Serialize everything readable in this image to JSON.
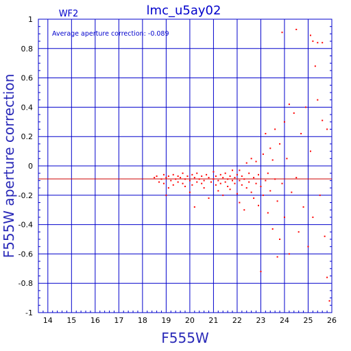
{
  "chart_data": {
    "type": "scatter",
    "title": "lmc_u5ay02",
    "chip_label": "WF2",
    "annotation": "Average aperture correction: -0.089",
    "xlabel": "F555W",
    "ylabel": "F555W aperture correction",
    "xlim": [
      13.6,
      26
    ],
    "ylim": [
      -1,
      1
    ],
    "xticks": [
      14,
      15,
      16,
      17,
      18,
      19,
      20,
      21,
      22,
      23,
      24,
      25,
      26
    ],
    "yticks": [
      -1,
      -0.8,
      -0.6,
      -0.4,
      -0.2,
      0,
      0.2,
      0.4,
      0.6,
      0.8,
      1
    ],
    "ytick_labels": [
      "-1",
      "-0.8",
      "-0.6",
      "-0.4",
      "-0.2",
      "0",
      "0.2",
      "0.4",
      "0.6",
      "0.8",
      "1"
    ],
    "grid": true,
    "reference_line": {
      "y": -0.089,
      "color": "#cc0000"
    },
    "point_color": "#ff0000",
    "axis_color": "#0000cc",
    "series": [
      {
        "values": [
          [
            18.5,
            -0.08
          ],
          [
            18.6,
            -0.07
          ],
          [
            18.7,
            -0.11
          ],
          [
            18.8,
            -0.09
          ],
          [
            18.9,
            -0.06
          ],
          [
            18.9,
            -0.12
          ],
          [
            19.0,
            -0.08
          ],
          [
            19.0,
            -0.2
          ],
          [
            19.1,
            -0.15
          ],
          [
            19.1,
            -0.07
          ],
          [
            19.2,
            -0.1
          ],
          [
            19.3,
            -0.06
          ],
          [
            19.3,
            -0.13
          ],
          [
            19.4,
            -0.09
          ],
          [
            19.5,
            -0.11
          ],
          [
            19.5,
            -0.07
          ],
          [
            19.6,
            -0.08
          ],
          [
            19.7,
            -0.12
          ],
          [
            19.7,
            -0.05
          ],
          [
            19.8,
            -0.14
          ],
          [
            19.8,
            -0.09
          ],
          [
            19.9,
            -0.07
          ],
          [
            20.0,
            -0.1
          ],
          [
            20.0,
            -0.18
          ],
          [
            20.1,
            -0.06
          ],
          [
            20.1,
            -0.13
          ],
          [
            20.2,
            -0.08
          ],
          [
            20.2,
            -0.28
          ],
          [
            20.3,
            -0.11
          ],
          [
            20.3,
            -0.05
          ],
          [
            20.4,
            -0.09
          ],
          [
            20.5,
            -0.12
          ],
          [
            20.5,
            -0.07
          ],
          [
            20.6,
            -0.1
          ],
          [
            20.6,
            -0.15
          ],
          [
            20.7,
            -0.06
          ],
          [
            20.8,
            -0.08
          ],
          [
            20.8,
            -0.22
          ],
          [
            20.9,
            -0.11
          ],
          [
            21.0,
            -0.09
          ],
          [
            21.0,
            -0.04
          ],
          [
            21.1,
            -0.13
          ],
          [
            21.1,
            -0.07
          ],
          [
            21.2,
            -0.1
          ],
          [
            21.2,
            -0.17
          ],
          [
            21.3,
            -0.06
          ],
          [
            21.3,
            -0.12
          ],
          [
            21.4,
            -0.08
          ],
          [
            21.4,
            -0.2
          ],
          [
            21.5,
            -0.11
          ],
          [
            21.5,
            -0.05
          ],
          [
            21.6,
            -0.09
          ],
          [
            21.6,
            -0.14
          ],
          [
            21.7,
            -0.07
          ],
          [
            21.7,
            -0.16
          ],
          [
            21.8,
            -0.1
          ],
          [
            21.8,
            -0.03
          ],
          [
            21.9,
            -0.12
          ],
          [
            21.9,
            -0.08
          ],
          [
            22.0,
            -0.06
          ],
          [
            22.0,
            -0.19
          ],
          [
            22.1,
            -0.1
          ],
          [
            22.1,
            -0.25
          ],
          [
            22.1,
            -0.03
          ],
          [
            22.2,
            -0.13
          ],
          [
            22.2,
            -0.07
          ],
          [
            22.3,
            -0.09
          ],
          [
            22.3,
            -0.3
          ],
          [
            22.4,
            -0.15
          ],
          [
            22.4,
            0.02
          ],
          [
            22.5,
            -0.11
          ],
          [
            22.5,
            -0.05
          ],
          [
            22.6,
            -0.18
          ],
          [
            22.6,
            0.05
          ],
          [
            22.7,
            -0.08
          ],
          [
            22.7,
            -0.22
          ],
          [
            22.8,
            -0.12
          ],
          [
            22.8,
            0.03
          ],
          [
            22.9,
            -0.27
          ],
          [
            22.9,
            -0.06
          ],
          [
            23.0,
            -0.14
          ],
          [
            23.0,
            -0.72
          ],
          [
            23.1,
            0.08
          ],
          [
            23.1,
            -0.2
          ],
          [
            23.2,
            -0.1
          ],
          [
            23.2,
            0.22
          ],
          [
            23.3,
            -0.05
          ],
          [
            23.3,
            -0.32
          ],
          [
            23.4,
            0.12
          ],
          [
            23.4,
            -0.17
          ],
          [
            23.5,
            -0.43
          ],
          [
            23.5,
            0.04
          ],
          [
            23.6,
            0.25
          ],
          [
            23.6,
            -0.09
          ],
          [
            23.7,
            -0.62
          ],
          [
            23.7,
            -0.24
          ],
          [
            23.8,
            0.15
          ],
          [
            23.8,
            -0.5
          ],
          [
            23.9,
            0.91
          ],
          [
            23.9,
            -0.12
          ],
          [
            24.0,
            0.3
          ],
          [
            24.0,
            -0.35
          ],
          [
            24.1,
            0.05
          ],
          [
            24.2,
            0.42
          ],
          [
            24.2,
            -0.6
          ],
          [
            24.3,
            -0.18
          ],
          [
            24.4,
            0.36
          ],
          [
            24.5,
            -0.08
          ],
          [
            24.5,
            0.93
          ],
          [
            24.6,
            -0.45
          ],
          [
            24.7,
            0.22
          ],
          [
            24.8,
            -0.28
          ],
          [
            24.9,
            0.4
          ],
          [
            25.0,
            -0.55
          ],
          [
            25.1,
            0.89
          ],
          [
            25.1,
            0.1
          ],
          [
            25.2,
            0.85
          ],
          [
            25.2,
            -0.35
          ],
          [
            25.3,
            0.68
          ],
          [
            25.4,
            0.84
          ],
          [
            25.4,
            0.45
          ],
          [
            25.5,
            -0.2
          ],
          [
            25.6,
            0.31
          ],
          [
            25.6,
            0.84
          ],
          [
            25.7,
            -0.48
          ],
          [
            25.8,
            0.25
          ],
          [
            25.8,
            -0.76
          ],
          [
            25.9,
            -0.92
          ]
        ]
      }
    ]
  }
}
